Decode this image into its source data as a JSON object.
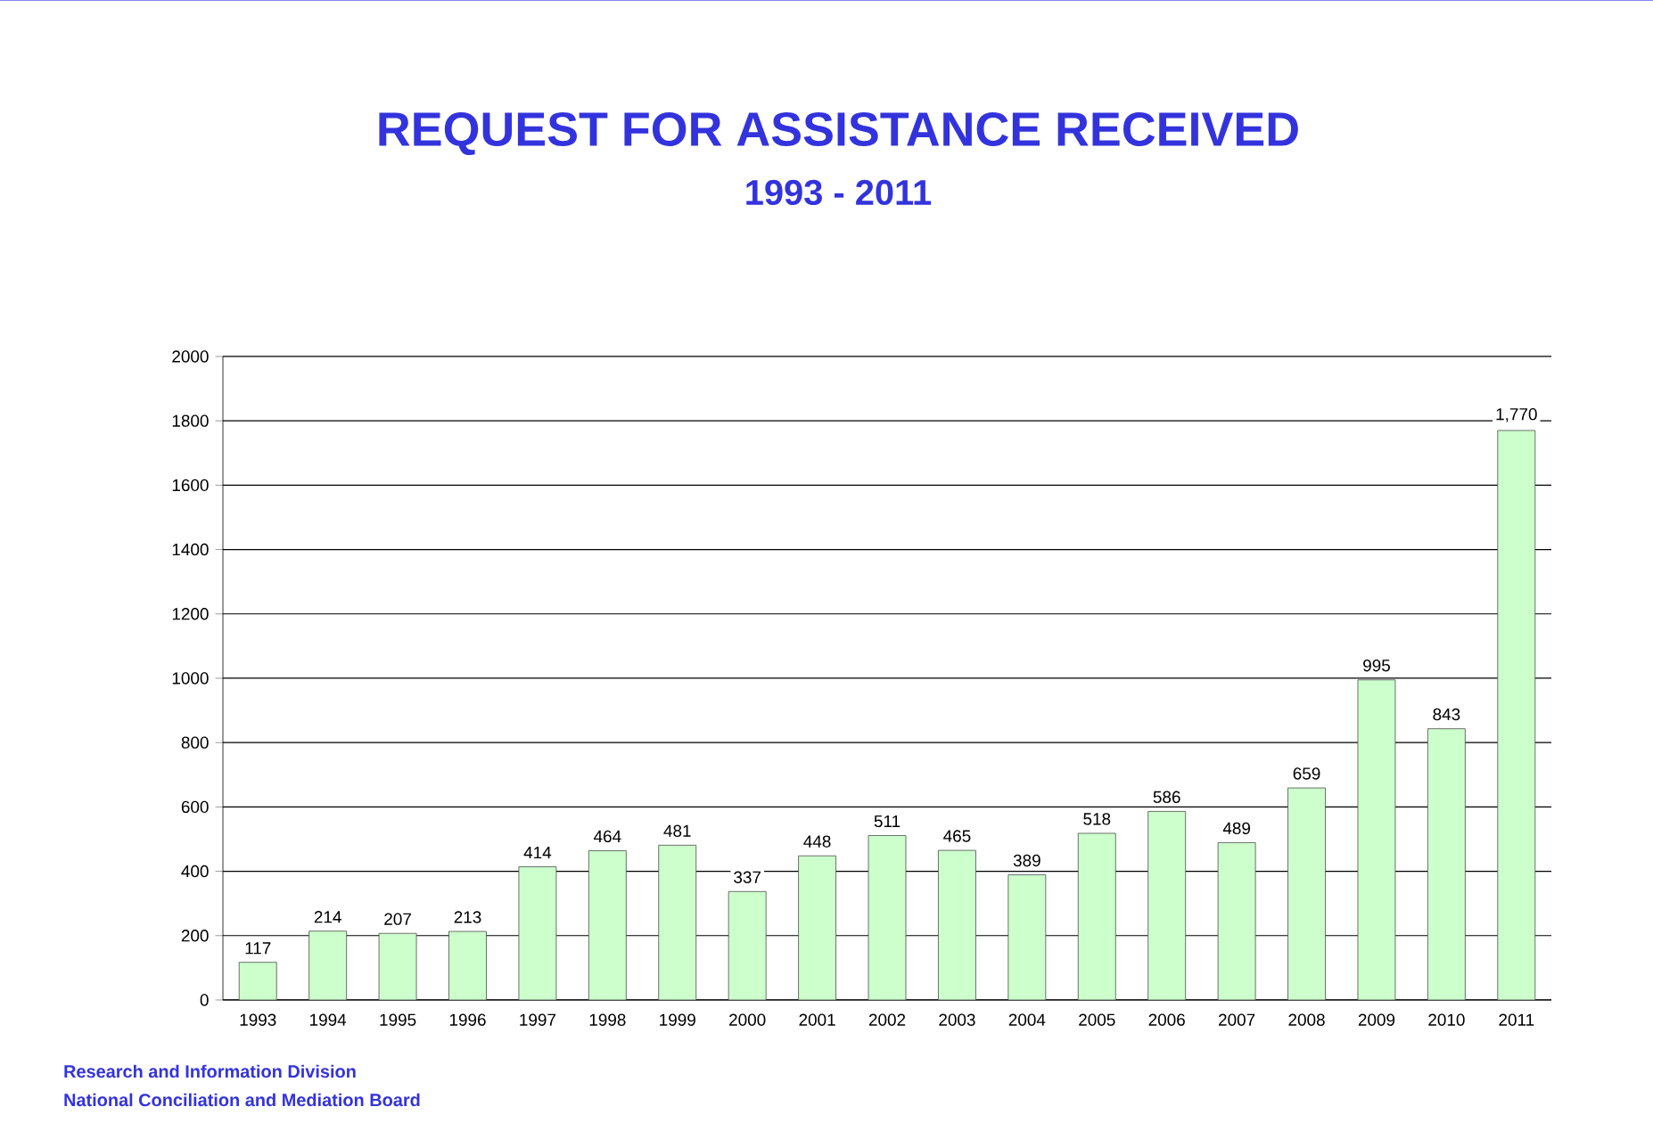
{
  "chart_data": {
    "type": "bar",
    "title": "REQUEST FOR ASSISTANCE RECEIVED",
    "subtitle": "1993 - 2011",
    "categories": [
      "1993",
      "1994",
      "1995",
      "1996",
      "1997",
      "1998",
      "1999",
      "2000",
      "2001",
      "2002",
      "2003",
      "2004",
      "2005",
      "2006",
      "2007",
      "2008",
      "2009",
      "2010",
      "2011"
    ],
    "values": [
      117,
      214,
      207,
      213,
      414,
      464,
      481,
      337,
      448,
      511,
      465,
      389,
      518,
      586,
      489,
      659,
      995,
      843,
      1770
    ],
    "value_labels": [
      "117",
      "214",
      "207",
      "213",
      "414",
      "464",
      "481",
      "337",
      "448",
      "511",
      "465",
      "389",
      "518",
      "586",
      "489",
      "659",
      "995",
      "843",
      "1,770"
    ],
    "color": "#ccffcc",
    "ylim": [
      0,
      2000
    ],
    "yticks": [
      0,
      200,
      400,
      600,
      800,
      1000,
      1200,
      1400,
      1600,
      1800,
      2000
    ],
    "grid": "y",
    "annotations": [
      "Research and Information Division",
      "National Conciliation and Mediation Board"
    ]
  }
}
